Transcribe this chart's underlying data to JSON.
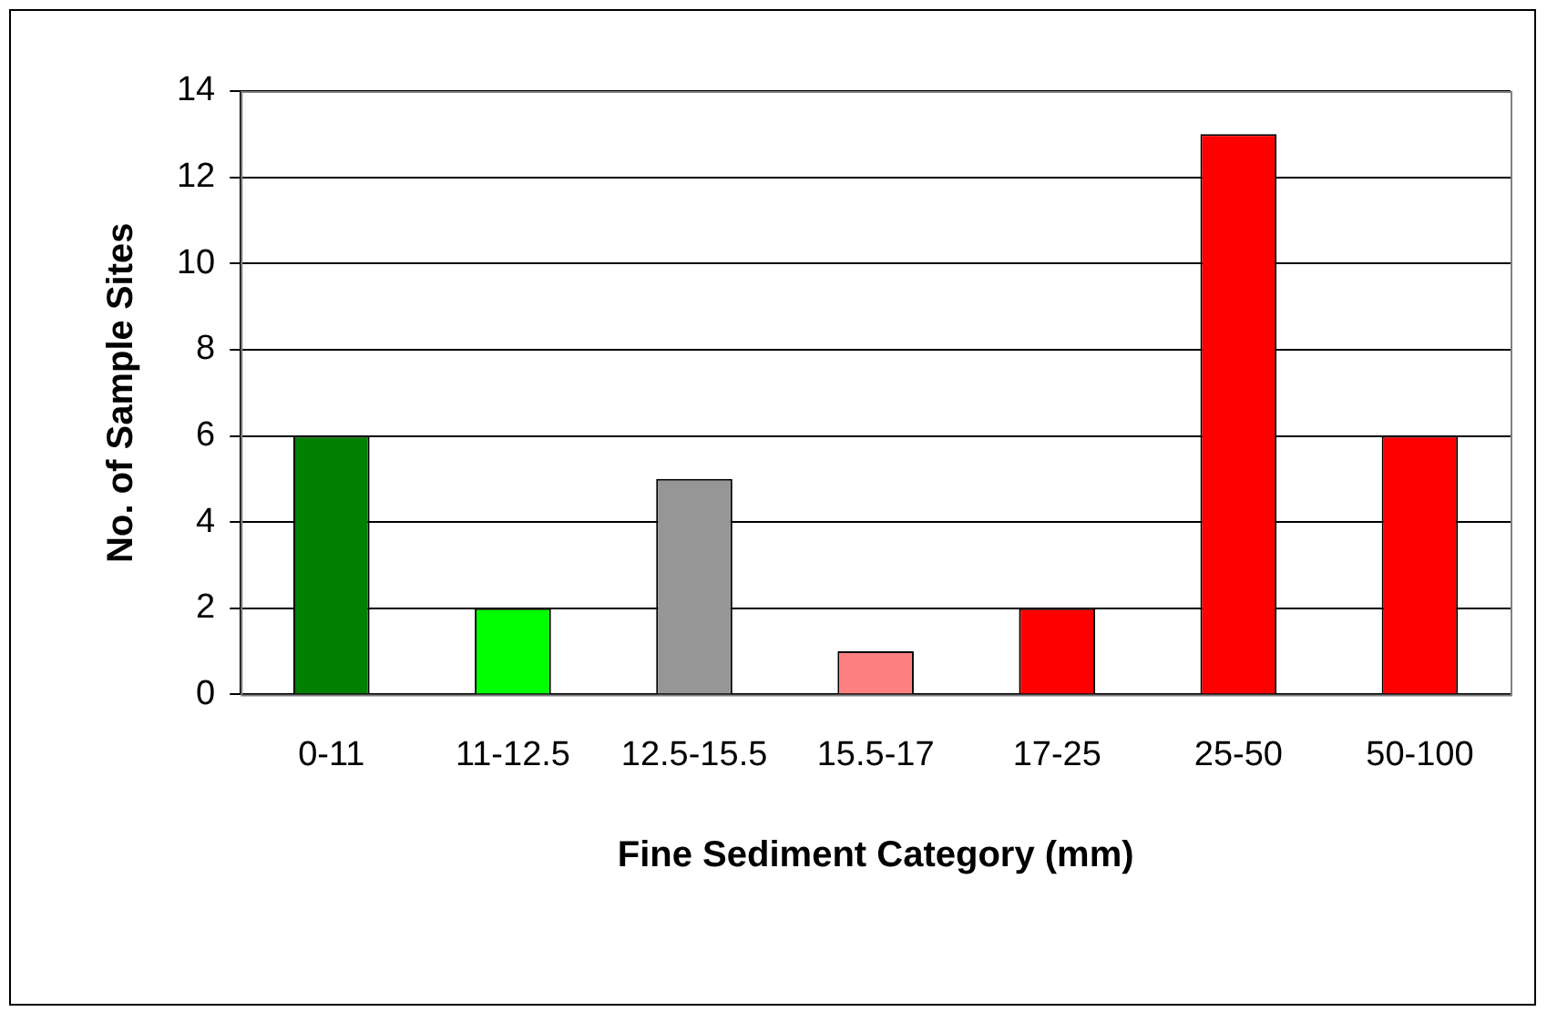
{
  "chart_data": {
    "type": "bar",
    "xlabel": "Fine Sediment Category (mm)",
    "ylabel": "No. of Sample Sites",
    "categories": [
      "0-11",
      "11-12.5",
      "12.5-15.5",
      "15.5-17",
      "17-25",
      "25-50",
      "50-100"
    ],
    "values": [
      6,
      2,
      5,
      1,
      2,
      13,
      6
    ],
    "colors": [
      "#008000",
      "#00ff00",
      "#969696",
      "#ff8080",
      "#ff0000",
      "#ff0000",
      "#ff0000"
    ],
    "ylim": [
      0,
      14
    ],
    "yticks": [
      0,
      2,
      4,
      6,
      8,
      10,
      12,
      14
    ],
    "grid": "y",
    "legend": false
  }
}
